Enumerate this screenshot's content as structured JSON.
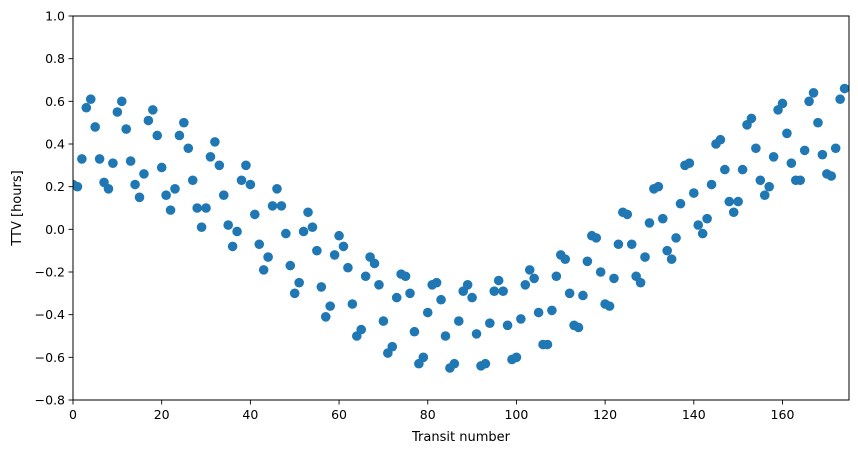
{
  "chart_data": {
    "type": "scatter",
    "title": "",
    "xlabel": "Transit number",
    "ylabel": "TTV [hours]",
    "xlim": [
      0,
      175
    ],
    "ylim": [
      -0.8,
      1.0
    ],
    "grid": false,
    "legend": "none",
    "marker_color": "#1f77b4",
    "xticks": [
      0,
      20,
      40,
      60,
      80,
      100,
      120,
      140,
      160
    ],
    "yticks": [
      -0.8,
      -0.6,
      -0.4,
      -0.2,
      0.0,
      0.2,
      0.4,
      0.6,
      0.8,
      1.0
    ],
    "xtick_labels": [
      "0",
      "20",
      "40",
      "60",
      "80",
      "100",
      "120",
      "140",
      "160"
    ],
    "ytick_labels": [
      "−0.8",
      "−0.6",
      "−0.4",
      "−0.2",
      "0.0",
      "0.2",
      "0.4",
      "0.6",
      "0.8",
      "1.0"
    ],
    "points": [
      [
        0,
        0.21
      ],
      [
        1,
        0.2
      ],
      [
        2,
        0.33
      ],
      [
        3,
        0.57
      ],
      [
        4,
        0.61
      ],
      [
        5,
        0.48
      ],
      [
        6,
        0.33
      ],
      [
        7,
        0.22
      ],
      [
        8,
        0.19
      ],
      [
        9,
        0.31
      ],
      [
        10,
        0.55
      ],
      [
        11,
        0.6
      ],
      [
        12,
        0.47
      ],
      [
        13,
        0.32
      ],
      [
        14,
        0.21
      ],
      [
        15,
        0.15
      ],
      [
        16,
        0.26
      ],
      [
        17,
        0.51
      ],
      [
        18,
        0.56
      ],
      [
        19,
        0.44
      ],
      [
        20,
        0.29
      ],
      [
        21,
        0.16
      ],
      [
        22,
        0.09
      ],
      [
        23,
        0.19
      ],
      [
        24,
        0.44
      ],
      [
        25,
        0.5
      ],
      [
        26,
        0.38
      ],
      [
        27,
        0.23
      ],
      [
        28,
        0.1
      ],
      [
        29,
        0.01
      ],
      [
        30,
        0.1
      ],
      [
        31,
        0.34
      ],
      [
        32,
        0.41
      ],
      [
        33,
        0.3
      ],
      [
        34,
        0.16
      ],
      [
        35,
        0.02
      ],
      [
        36,
        -0.08
      ],
      [
        37,
        -0.01
      ],
      [
        38,
        0.23
      ],
      [
        39,
        0.3
      ],
      [
        40,
        0.21
      ],
      [
        41,
        0.07
      ],
      [
        42,
        -0.07
      ],
      [
        43,
        -0.19
      ],
      [
        44,
        -0.13
      ],
      [
        45,
        0.11
      ],
      [
        46,
        0.19
      ],
      [
        47,
        0.11
      ],
      [
        48,
        -0.02
      ],
      [
        49,
        -0.17
      ],
      [
        50,
        -0.3
      ],
      [
        51,
        -0.25
      ],
      [
        52,
        -0.01
      ],
      [
        53,
        0.08
      ],
      [
        54,
        0.01
      ],
      [
        55,
        -0.1
      ],
      [
        56,
        -0.27
      ],
      [
        57,
        -0.41
      ],
      [
        58,
        -0.36
      ],
      [
        59,
        -0.12
      ],
      [
        60,
        -0.03
      ],
      [
        61,
        -0.08
      ],
      [
        62,
        -0.18
      ],
      [
        63,
        -0.35
      ],
      [
        64,
        -0.5
      ],
      [
        65,
        -0.47
      ],
      [
        66,
        -0.22
      ],
      [
        67,
        -0.13
      ],
      [
        68,
        -0.16
      ],
      [
        69,
        -0.26
      ],
      [
        70,
        -0.43
      ],
      [
        71,
        -0.58
      ],
      [
        72,
        -0.55
      ],
      [
        73,
        -0.32
      ],
      [
        74,
        -0.21
      ],
      [
        75,
        -0.22
      ],
      [
        76,
        -0.3
      ],
      [
        77,
        -0.48
      ],
      [
        78,
        -0.63
      ],
      [
        79,
        -0.6
      ],
      [
        80,
        -0.39
      ],
      [
        81,
        -0.26
      ],
      [
        82,
        -0.25
      ],
      [
        83,
        -0.33
      ],
      [
        84,
        -0.5
      ],
      [
        85,
        -0.65
      ],
      [
        86,
        -0.63
      ],
      [
        87,
        -0.43
      ],
      [
        88,
        -0.29
      ],
      [
        89,
        -0.26
      ],
      [
        90,
        -0.32
      ],
      [
        91,
        -0.49
      ],
      [
        92,
        -0.64
      ],
      [
        93,
        -0.63
      ],
      [
        94,
        -0.44
      ],
      [
        95,
        -0.29
      ],
      [
        96,
        -0.24
      ],
      [
        97,
        -0.29
      ],
      [
        98,
        -0.45
      ],
      [
        99,
        -0.61
      ],
      [
        100,
        -0.6
      ],
      [
        101,
        -0.42
      ],
      [
        102,
        -0.26
      ],
      [
        103,
        -0.19
      ],
      [
        104,
        -0.23
      ],
      [
        105,
        -0.39
      ],
      [
        106,
        -0.54
      ],
      [
        107,
        -0.54
      ],
      [
        108,
        -0.38
      ],
      [
        109,
        -0.22
      ],
      [
        110,
        -0.12
      ],
      [
        111,
        -0.14
      ],
      [
        112,
        -0.3
      ],
      [
        113,
        -0.45
      ],
      [
        114,
        -0.46
      ],
      [
        115,
        -0.31
      ],
      [
        116,
        -0.15
      ],
      [
        117,
        -0.03
      ],
      [
        118,
        -0.04
      ],
      [
        119,
        -0.2
      ],
      [
        120,
        -0.35
      ],
      [
        121,
        -0.36
      ],
      [
        122,
        -0.23
      ],
      [
        123,
        -0.07
      ],
      [
        124,
        0.08
      ],
      [
        125,
        0.07
      ],
      [
        126,
        -0.07
      ],
      [
        127,
        -0.22
      ],
      [
        128,
        -0.25
      ],
      [
        129,
        -0.13
      ],
      [
        130,
        0.03
      ],
      [
        131,
        0.19
      ],
      [
        132,
        0.2
      ],
      [
        133,
        0.05
      ],
      [
        134,
        -0.1
      ],
      [
        135,
        -0.14
      ],
      [
        136,
        -0.04
      ],
      [
        137,
        0.12
      ],
      [
        138,
        0.3
      ],
      [
        139,
        0.31
      ],
      [
        140,
        0.17
      ],
      [
        141,
        0.02
      ],
      [
        142,
        -0.02
      ],
      [
        143,
        0.05
      ],
      [
        144,
        0.21
      ],
      [
        145,
        0.4
      ],
      [
        146,
        0.42
      ],
      [
        147,
        0.28
      ],
      [
        148,
        0.13
      ],
      [
        149,
        0.08
      ],
      [
        150,
        0.13
      ],
      [
        151,
        0.28
      ],
      [
        152,
        0.49
      ],
      [
        153,
        0.52
      ],
      [
        154,
        0.38
      ],
      [
        155,
        0.23
      ],
      [
        156,
        0.16
      ],
      [
        157,
        0.2
      ],
      [
        158,
        0.34
      ],
      [
        159,
        0.56
      ],
      [
        160,
        0.59
      ],
      [
        161,
        0.45
      ],
      [
        162,
        0.31
      ],
      [
        163,
        0.23
      ],
      [
        164,
        0.23
      ],
      [
        165,
        0.37
      ],
      [
        166,
        0.6
      ],
      [
        167,
        0.64
      ],
      [
        168,
        0.5
      ],
      [
        169,
        0.35
      ],
      [
        170,
        0.26
      ],
      [
        171,
        0.25
      ],
      [
        172,
        0.38
      ],
      [
        173,
        0.61
      ],
      [
        174,
        0.66
      ]
    ]
  }
}
